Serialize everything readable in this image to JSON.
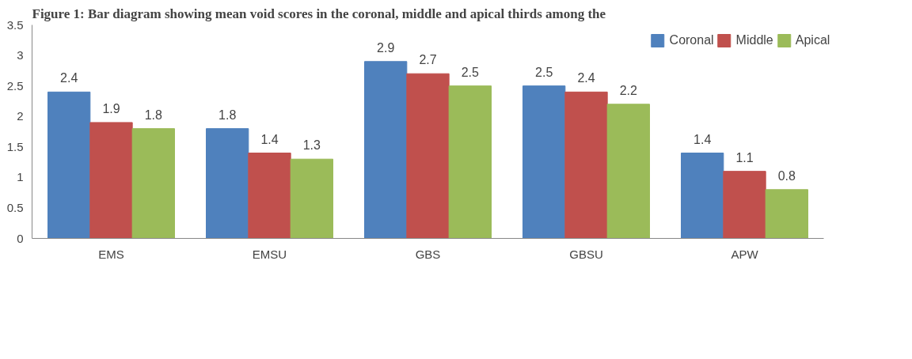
{
  "chart_data": {
    "type": "bar",
    "title": "Figure 1: Bar diagram showing mean void scores in the coronal, middle and apical thirds among the",
    "categories": [
      "EMS",
      "EMSU",
      "GBS",
      "GBSU",
      "APW"
    ],
    "series": [
      {
        "name": "Coronal",
        "color": "#4f81bd",
        "values": [
          2.4,
          1.8,
          2.9,
          2.5,
          1.4
        ]
      },
      {
        "name": "Middle",
        "color": "#c0504d",
        "values": [
          1.9,
          1.4,
          2.7,
          2.4,
          1.1
        ]
      },
      {
        "name": "Apical",
        "color": "#9bbb59",
        "values": [
          1.8,
          1.3,
          2.5,
          2.2,
          0.8
        ]
      }
    ],
    "ylim": [
      0,
      3.5
    ],
    "yticks": [
      0,
      0.5,
      1,
      1.5,
      2,
      2.5,
      3,
      3.5
    ],
    "data_labels": true,
    "grid": false,
    "legend": "top right"
  }
}
